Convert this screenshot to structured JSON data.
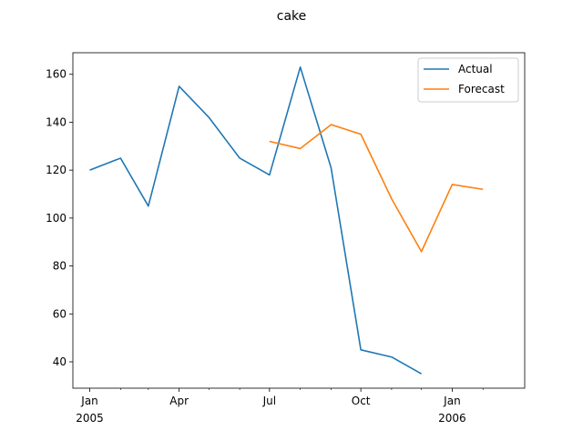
{
  "chart_data": {
    "type": "line",
    "title": "cake",
    "xlabel": "",
    "ylabel": "",
    "x_axis": {
      "type": "date",
      "range": [
        "2004-12-15",
        "2006-03-15"
      ],
      "major_ticks": [
        {
          "date": "2005-01-01",
          "label": "Jan",
          "sublabel": "2005"
        },
        {
          "date": "2005-04-01",
          "label": "Apr",
          "sublabel": ""
        },
        {
          "date": "2005-07-01",
          "label": "Jul",
          "sublabel": ""
        },
        {
          "date": "2005-10-01",
          "label": "Oct",
          "sublabel": ""
        },
        {
          "date": "2006-01-01",
          "label": "Jan",
          "sublabel": "2006"
        }
      ],
      "minor_ticks": [
        "2005-02-01",
        "2005-03-01",
        "2005-05-01",
        "2005-06-01",
        "2005-08-01",
        "2005-09-01",
        "2005-11-01",
        "2005-12-01",
        "2006-02-01"
      ]
    },
    "y_axis": {
      "range": [
        29,
        169
      ],
      "ticks": [
        40,
        60,
        80,
        100,
        120,
        140,
        160
      ]
    },
    "grid": false,
    "legend": "top-right",
    "series": [
      {
        "name": "Actual",
        "color": "#1f77b4",
        "points": [
          {
            "x": "2005-01-01",
            "y": 120
          },
          {
            "x": "2005-02-01",
            "y": 125
          },
          {
            "x": "2005-03-01",
            "y": 105
          },
          {
            "x": "2005-04-01",
            "y": 155
          },
          {
            "x": "2005-05-01",
            "y": 142
          },
          {
            "x": "2005-06-01",
            "y": 125
          },
          {
            "x": "2005-07-01",
            "y": 118
          },
          {
            "x": "2005-08-01",
            "y": 163
          },
          {
            "x": "2005-09-01",
            "y": 121
          },
          {
            "x": "2005-10-01",
            "y": 45
          },
          {
            "x": "2005-11-01",
            "y": 42
          },
          {
            "x": "2005-12-01",
            "y": 35
          }
        ]
      },
      {
        "name": "Forecast",
        "color": "#ff7f0e",
        "points": [
          {
            "x": "2005-07-01",
            "y": 132
          },
          {
            "x": "2005-08-01",
            "y": 129
          },
          {
            "x": "2005-09-01",
            "y": 139
          },
          {
            "x": "2005-10-01",
            "y": 135
          },
          {
            "x": "2005-11-01",
            "y": 108
          },
          {
            "x": "2005-12-01",
            "y": 86
          },
          {
            "x": "2006-01-01",
            "y": 114
          },
          {
            "x": "2006-02-01",
            "y": 112
          }
        ]
      }
    ]
  }
}
